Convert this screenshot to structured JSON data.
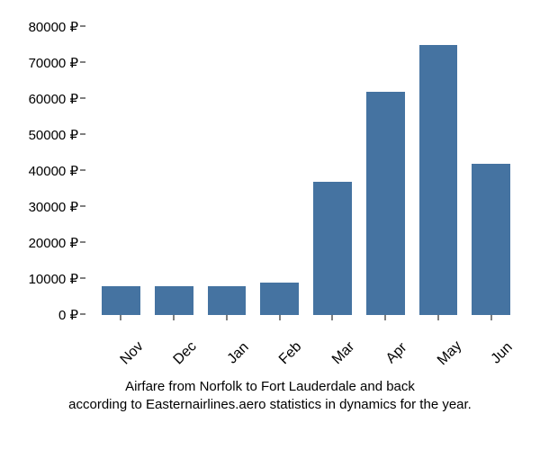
{
  "chart": {
    "type": "bar",
    "categories": [
      "Nov",
      "Dec",
      "Jan",
      "Feb",
      "Mar",
      "Apr",
      "May",
      "Jun"
    ],
    "values": [
      8000,
      8000,
      8000,
      9000,
      37000,
      62000,
      75000,
      42000
    ],
    "bar_color": "#4573a1",
    "background_color": "#ffffff",
    "ylim": [
      0,
      80000
    ],
    "ytick_step": 10000,
    "y_tick_labels": [
      "0 ₽",
      "10000 ₽",
      "20000 ₽",
      "30000 ₽",
      "40000 ₽",
      "50000 ₽",
      "60000 ₽",
      "70000 ₽",
      "80000 ₽"
    ],
    "currency_symbol": "₽",
    "tick_fontsize": 15,
    "xlabel_rotation": -45,
    "caption_line1": "Airfare from Norfolk to Fort Lauderdale and back",
    "caption_line2": "according to Easternairlines.aero statistics in dynamics for the year.",
    "caption_fontsize": 15,
    "caption_color": "#000000"
  }
}
